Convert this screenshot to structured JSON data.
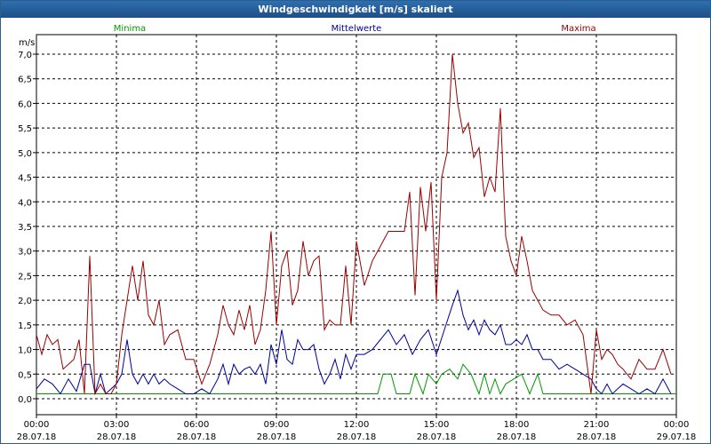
{
  "title": "Windgeschwindigkeit [m/s] skaliert",
  "chart_data": {
    "type": "line",
    "ylabel": "m/s",
    "ylim": [
      0,
      7
    ],
    "xlim": [
      0,
      24
    ],
    "grid": true,
    "yticks": [
      {
        "value": 0,
        "label": "0,0"
      },
      {
        "value": 0.5,
        "label": "0,5"
      },
      {
        "value": 1,
        "label": "1,0"
      },
      {
        "value": 1.5,
        "label": "1,5"
      },
      {
        "value": 2,
        "label": "2,0"
      },
      {
        "value": 2.5,
        "label": "2,5"
      },
      {
        "value": 3,
        "label": "3,0"
      },
      {
        "value": 3.5,
        "label": "3,5"
      },
      {
        "value": 4,
        "label": "4,0"
      },
      {
        "value": 4.5,
        "label": "4,5"
      },
      {
        "value": 5,
        "label": "5,0"
      },
      {
        "value": 5.5,
        "label": "5,5"
      },
      {
        "value": 6,
        "label": "6,0"
      },
      {
        "value": 6.5,
        "label": "6,5"
      },
      {
        "value": 7,
        "label": "7,0"
      }
    ],
    "xticks": [
      {
        "value": 0,
        "time": "00:00",
        "date": "28.07.18"
      },
      {
        "value": 3,
        "time": "03:00",
        "date": "28.07.18"
      },
      {
        "value": 6,
        "time": "06:00",
        "date": "28.07.18"
      },
      {
        "value": 9,
        "time": "09:00",
        "date": "28.07.18"
      },
      {
        "value": 12,
        "time": "12:00",
        "date": "28.07.18"
      },
      {
        "value": 15,
        "time": "15:00",
        "date": "28.07.18"
      },
      {
        "value": 18,
        "time": "18:00",
        "date": "28.07.18"
      },
      {
        "value": 21,
        "time": "21:00",
        "date": "28.07.18"
      },
      {
        "value": 24,
        "time": "00:00",
        "date": "29.07.18"
      }
    ],
    "series": [
      {
        "name": "Minima",
        "color": "#009900",
        "legend_position": "left",
        "x": [
          0,
          12.8,
          13.0,
          13.3,
          13.5,
          13.8,
          14.0,
          14.2,
          14.5,
          14.7,
          15.0,
          15.2,
          15.5,
          15.8,
          16.0,
          16.3,
          16.6,
          16.8,
          17.0,
          17.2,
          17.4,
          17.6,
          17.9,
          18.2,
          18.5,
          18.8,
          19.0,
          24.0
        ],
        "y": [
          0.1,
          0.1,
          0.5,
          0.5,
          0.1,
          0.1,
          0.1,
          0.5,
          0.1,
          0.5,
          0.3,
          0.5,
          0.6,
          0.4,
          0.7,
          0.5,
          0.1,
          0.5,
          0.1,
          0.4,
          0.1,
          0.3,
          0.4,
          0.5,
          0.1,
          0.5,
          0.1,
          0.1
        ]
      },
      {
        "name": "Mittelwerte",
        "color": "#000099",
        "legend_position": "center",
        "x": [
          0,
          0.3,
          0.6,
          0.9,
          1.2,
          1.5,
          1.8,
          2.0,
          2.2,
          2.4,
          2.6,
          2.8,
          3.0,
          3.2,
          3.4,
          3.6,
          3.8,
          4.0,
          4.2,
          4.4,
          4.6,
          4.8,
          5.0,
          5.3,
          5.6,
          5.9,
          6.2,
          6.5,
          6.8,
          7.0,
          7.2,
          7.4,
          7.6,
          7.8,
          8.0,
          8.2,
          8.4,
          8.6,
          8.8,
          9.0,
          9.2,
          9.4,
          9.6,
          9.8,
          10.0,
          10.2,
          10.4,
          10.6,
          10.8,
          11.0,
          11.2,
          11.4,
          11.6,
          11.8,
          12.0,
          12.3,
          12.6,
          12.9,
          13.2,
          13.5,
          13.8,
          14.1,
          14.4,
          14.7,
          15.0,
          15.3,
          15.6,
          15.8,
          16.0,
          16.2,
          16.4,
          16.6,
          16.8,
          17.0,
          17.2,
          17.4,
          17.6,
          17.8,
          18.0,
          18.2,
          18.4,
          18.6,
          18.8,
          19.0,
          19.3,
          19.6,
          19.9,
          20.2,
          20.5,
          20.8,
          21.0,
          21.2,
          21.4,
          21.6,
          21.8,
          22.0,
          22.3,
          22.6,
          22.9,
          23.2,
          23.5,
          23.8
        ],
        "y": [
          0.2,
          0.4,
          0.3,
          0.1,
          0.4,
          0.15,
          0.7,
          0.7,
          0.1,
          0.5,
          0.1,
          0.2,
          0.3,
          0.5,
          1.2,
          0.5,
          0.3,
          0.5,
          0.3,
          0.5,
          0.3,
          0.4,
          0.3,
          0.2,
          0.1,
          0.1,
          0.2,
          0.1,
          0.4,
          0.7,
          0.3,
          0.7,
          0.5,
          0.6,
          0.65,
          0.5,
          0.7,
          0.3,
          1.1,
          0.7,
          1.4,
          0.8,
          0.7,
          1.2,
          1.0,
          1.0,
          1.1,
          0.6,
          0.3,
          0.5,
          0.8,
          0.4,
          0.9,
          0.6,
          0.9,
          0.9,
          1.0,
          1.2,
          1.4,
          1.1,
          1.3,
          0.9,
          1.2,
          1.4,
          0.9,
          1.4,
          1.9,
          2.2,
          1.7,
          1.4,
          1.6,
          1.3,
          1.6,
          1.4,
          1.3,
          1.5,
          1.1,
          1.1,
          1.2,
          1.1,
          1.3,
          1.0,
          1.0,
          0.8,
          0.8,
          0.6,
          0.7,
          0.6,
          0.5,
          0.4,
          0.2,
          0.1,
          0.3,
          0.1,
          0.2,
          0.3,
          0.2,
          0.1,
          0.2,
          0.1,
          0.4,
          0.1
        ]
      },
      {
        "name": "Maxima",
        "color": "#990000",
        "legend_position": "right",
        "x": [
          0,
          0.2,
          0.4,
          0.6,
          0.8,
          1.0,
          1.2,
          1.4,
          1.6,
          1.8,
          2.0,
          2.2,
          2.4,
          2.6,
          2.8,
          3.0,
          3.2,
          3.4,
          3.6,
          3.8,
          4.0,
          4.2,
          4.4,
          4.6,
          4.8,
          5.0,
          5.3,
          5.6,
          5.9,
          6.2,
          6.5,
          6.8,
          7.0,
          7.2,
          7.4,
          7.6,
          7.8,
          8.0,
          8.2,
          8.4,
          8.6,
          8.8,
          9.0,
          9.2,
          9.4,
          9.6,
          9.8,
          10.0,
          10.2,
          10.4,
          10.6,
          10.8,
          11.0,
          11.2,
          11.4,
          11.6,
          11.8,
          12.0,
          12.3,
          12.6,
          12.9,
          13.2,
          13.5,
          13.8,
          14.0,
          14.2,
          14.4,
          14.6,
          14.8,
          15.0,
          15.2,
          15.4,
          15.6,
          15.8,
          16.0,
          16.2,
          16.4,
          16.6,
          16.8,
          17.0,
          17.2,
          17.4,
          17.6,
          17.8,
          18.0,
          18.2,
          18.4,
          18.6,
          18.8,
          19.0,
          19.3,
          19.6,
          19.9,
          20.2,
          20.5,
          20.8,
          21.0,
          21.2,
          21.4,
          21.6,
          21.8,
          22.0,
          22.3,
          22.6,
          22.9,
          23.2,
          23.5,
          23.8
        ],
        "y": [
          1.3,
          0.9,
          1.3,
          1.1,
          1.2,
          0.6,
          0.7,
          0.8,
          1.2,
          0.1,
          2.9,
          0.1,
          0.3,
          0.1,
          0.1,
          0.3,
          1.3,
          2.0,
          2.7,
          2.0,
          2.8,
          1.7,
          1.5,
          2.0,
          1.1,
          1.3,
          1.4,
          0.8,
          0.8,
          0.3,
          0.7,
          1.3,
          1.9,
          1.5,
          1.3,
          1.8,
          1.4,
          1.9,
          1.1,
          1.4,
          2.2,
          3.4,
          1.5,
          2.7,
          3.0,
          1.9,
          2.2,
          3.2,
          2.5,
          2.8,
          2.9,
          1.4,
          1.6,
          1.5,
          1.5,
          2.7,
          1.5,
          3.2,
          2.3,
          2.8,
          3.1,
          3.4,
          3.4,
          3.4,
          4.2,
          2.1,
          4.3,
          3.4,
          4.4,
          2.0,
          4.5,
          5.0,
          7.0,
          6.0,
          5.4,
          5.6,
          4.9,
          5.1,
          4.1,
          4.5,
          4.2,
          5.9,
          3.3,
          2.8,
          2.5,
          3.3,
          2.8,
          2.2,
          2.0,
          1.8,
          1.7,
          1.7,
          1.5,
          1.6,
          1.3,
          0.1,
          1.4,
          0.8,
          1.0,
          0.9,
          0.7,
          0.6,
          0.4,
          0.8,
          0.6,
          0.6,
          1.0,
          0.5
        ]
      }
    ]
  }
}
